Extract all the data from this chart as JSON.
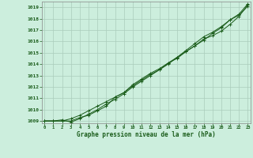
{
  "bg_color": "#cceedd",
  "grid_color": "#aaccbb",
  "line_color": "#1a5c1a",
  "xlabel": "Graphe pression niveau de la mer (hPa)",
  "xlim_left": -0.3,
  "xlim_right": 23.3,
  "ylim": [
    1008.8,
    1019.5
  ],
  "yticks": [
    1009,
    1010,
    1011,
    1012,
    1013,
    1014,
    1015,
    1016,
    1017,
    1018,
    1019
  ],
  "xticks": [
    0,
    1,
    2,
    3,
    4,
    5,
    6,
    7,
    8,
    9,
    10,
    11,
    12,
    13,
    14,
    15,
    16,
    17,
    18,
    19,
    20,
    21,
    22,
    23
  ],
  "series1": [
    1009.0,
    1009.0,
    1009.1,
    1008.9,
    1009.2,
    1009.6,
    1010.0,
    1010.5,
    1010.9,
    1011.4,
    1012.0,
    1012.5,
    1013.0,
    1013.5,
    1014.0,
    1014.6,
    1015.1,
    1015.6,
    1016.1,
    1016.7,
    1017.2,
    1017.9,
    1018.3,
    1019.1
  ],
  "series2": [
    1009.0,
    1009.0,
    1009.0,
    1009.2,
    1009.5,
    1009.9,
    1010.3,
    1010.7,
    1011.1,
    1011.5,
    1012.1,
    1012.6,
    1013.1,
    1013.5,
    1014.1,
    1014.5,
    1015.1,
    1015.6,
    1016.2,
    1016.5,
    1016.9,
    1017.5,
    1018.2,
    1019.2
  ],
  "series3": [
    1009.0,
    1009.0,
    1009.0,
    1009.0,
    1009.3,
    1009.5,
    1009.9,
    1010.3,
    1011.1,
    1011.5,
    1012.2,
    1012.7,
    1013.2,
    1013.6,
    1014.1,
    1014.6,
    1015.2,
    1015.8,
    1016.4,
    1016.8,
    1017.3,
    1017.9,
    1018.4,
    1019.3
  ]
}
